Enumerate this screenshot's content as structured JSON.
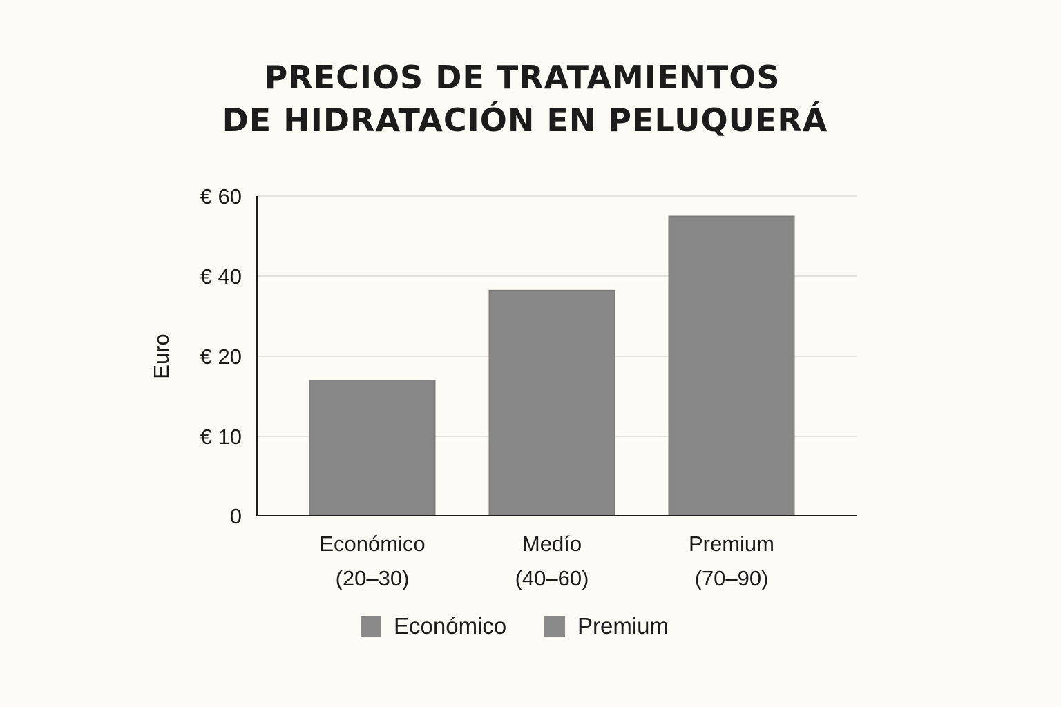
{
  "chart_data": {
    "type": "bar",
    "title_lines": [
      "PRECIOS DE TRATAMIENTOS",
      "DE HIDRATACIÓN EN PELUQUERÁ"
    ],
    "ylabel": "Euro",
    "xlabel": "",
    "y_ticks": [
      {
        "value": 0,
        "label": "0"
      },
      {
        "value": 10,
        "label": "€ 10"
      },
      {
        "value": 20,
        "label": "€ 20"
      },
      {
        "value": 40,
        "label": "€ 40"
      },
      {
        "value": 60,
        "label": "€ 60"
      }
    ],
    "categories": [
      {
        "name": "Económico",
        "range": "(20–30)"
      },
      {
        "name": "Medío",
        "range": "(40–60)"
      },
      {
        "name": "Premium",
        "range": "(70–90)"
      }
    ],
    "values": [
      17,
      36.5,
      55
    ],
    "grid": true,
    "legend": {
      "placement": "bottom",
      "entries": [
        {
          "label": "Económico",
          "color": "#8a8a8a"
        },
        {
          "label": "Premium",
          "color": "#8a8a8a"
        }
      ]
    },
    "colors": {
      "bar": "#878787",
      "bar_edge": "#7a7a7a",
      "background": "#fcfbf6"
    }
  }
}
